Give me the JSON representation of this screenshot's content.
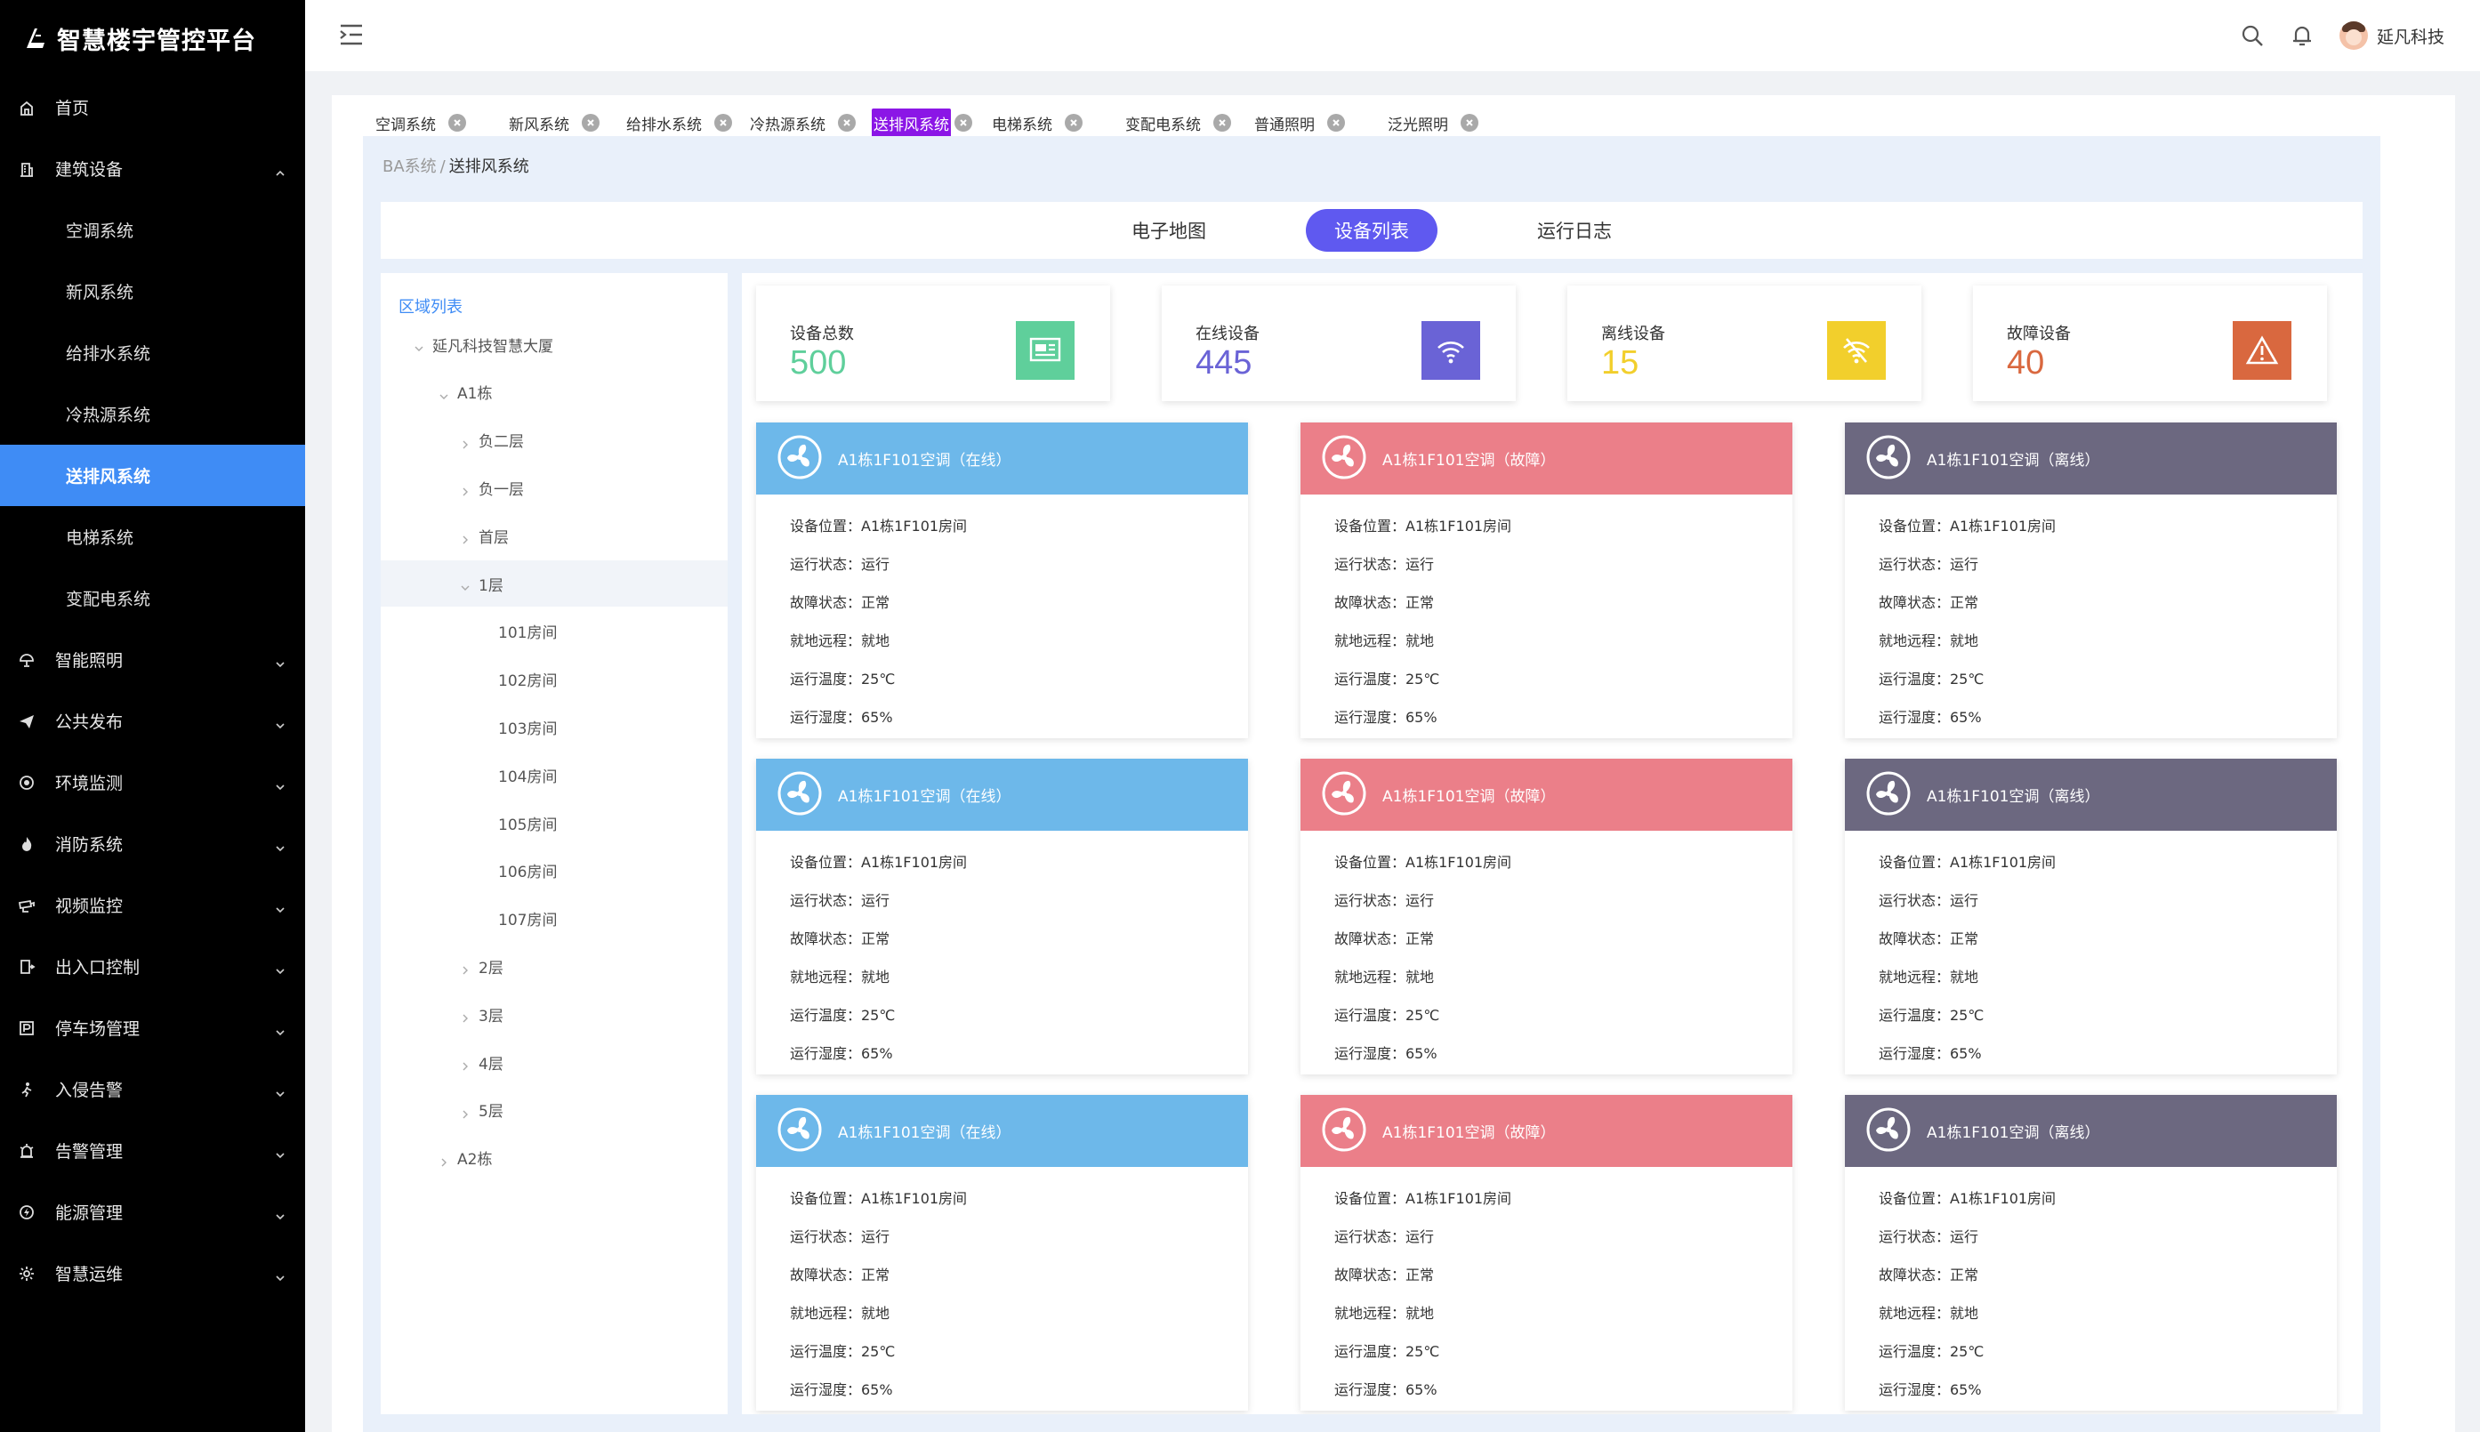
{
  "app": {
    "title": "智慧楼宇管控平台"
  },
  "sidebar": {
    "items": [
      {
        "label": "首页",
        "icon": "home-icon"
      },
      {
        "label": "建筑设备",
        "icon": "building-icon",
        "expanded": true,
        "children": [
          "空调系统",
          "新风系统",
          "给排水系统",
          "冷热源系统",
          "送排风系统",
          "电梯系统",
          "变配电系统"
        ]
      },
      {
        "label": "智能照明",
        "icon": "light-icon"
      },
      {
        "label": "公共发布",
        "icon": "send-icon"
      },
      {
        "label": "环境监测",
        "icon": "environment-icon"
      },
      {
        "label": "消防系统",
        "icon": "fire-icon"
      },
      {
        "label": "视频监控",
        "icon": "camera-icon"
      },
      {
        "label": "出入口控制",
        "icon": "door-icon"
      },
      {
        "label": "停车场管理",
        "icon": "parking-icon"
      },
      {
        "label": "入侵告警",
        "icon": "intrusion-icon"
      },
      {
        "label": "告警管理",
        "icon": "alarm-icon"
      },
      {
        "label": "能源管理",
        "icon": "energy-icon"
      },
      {
        "label": "智慧运维",
        "icon": "maintenance-icon"
      }
    ],
    "active_child": "送排风系统"
  },
  "header": {
    "username": "延凡科技"
  },
  "tabs": [
    "空调系统",
    "新风系统",
    "给排水系统",
    "冷热源系统",
    "送排风系统",
    "电梯系统",
    "变配电系统",
    "普通照明",
    "泛光照明"
  ],
  "active_tab": "送排风系统",
  "breadcrumb": {
    "root": "BA系统",
    "sep": "/",
    "current": "送排风系统"
  },
  "view_tabs": [
    "电子地图",
    "设备列表",
    "运行日志"
  ],
  "active_view": "设备列表",
  "tree": {
    "title": "区域列表",
    "nodes": [
      {
        "label": "延凡科技智慧大厦",
        "level": 0,
        "caret": "down"
      },
      {
        "label": "A1栋",
        "level": 1,
        "caret": "down"
      },
      {
        "label": "负二层",
        "level": 2,
        "caret": "right"
      },
      {
        "label": "负一层",
        "level": 2,
        "caret": "right"
      },
      {
        "label": "首层",
        "level": 2,
        "caret": "right"
      },
      {
        "label": "1层",
        "level": 2,
        "caret": "down",
        "selected": true
      },
      {
        "label": "101房间",
        "level": 3,
        "caret": ""
      },
      {
        "label": "102房间",
        "level": 3,
        "caret": ""
      },
      {
        "label": "103房间",
        "level": 3,
        "caret": ""
      },
      {
        "label": "104房间",
        "level": 3,
        "caret": ""
      },
      {
        "label": "105房间",
        "level": 3,
        "caret": ""
      },
      {
        "label": "106房间",
        "level": 3,
        "caret": ""
      },
      {
        "label": "107房间",
        "level": 3,
        "caret": ""
      },
      {
        "label": "2层",
        "level": 2,
        "caret": "right"
      },
      {
        "label": "3层",
        "level": 2,
        "caret": "right"
      },
      {
        "label": "4层",
        "level": 2,
        "caret": "right"
      },
      {
        "label": "5层",
        "level": 2,
        "caret": "right"
      },
      {
        "label": "A2栋",
        "level": 1,
        "caret": "right"
      }
    ]
  },
  "stats": [
    {
      "label": "设备总数",
      "value": "500",
      "color": "#5fcf9b",
      "icon": "monitor-icon"
    },
    {
      "label": "在线设备",
      "value": "445",
      "color": "#6a63d6",
      "icon": "wifi-icon"
    },
    {
      "label": "离线设备",
      "value": "15",
      "color": "#f2cf2c",
      "icon": "wifi-off-icon"
    },
    {
      "label": "故障设备",
      "value": "40",
      "color": "#d9683f",
      "icon": "warning-icon"
    }
  ],
  "device_cards": [
    {
      "title": "A1栋1F101空调（在线）",
      "status": "online"
    },
    {
      "title": "A1栋1F101空调（故障）",
      "status": "fault"
    },
    {
      "title": "A1栋1F101空调（离线）",
      "status": "offline"
    },
    {
      "title": "A1栋1F101空调（在线）",
      "status": "online"
    },
    {
      "title": "A1栋1F101空调（故障）",
      "status": "fault"
    },
    {
      "title": "A1栋1F101空调（离线）",
      "status": "offline"
    },
    {
      "title": "A1栋1F101空调（在线）",
      "status": "online"
    },
    {
      "title": "A1栋1F101空调（故障）",
      "status": "fault"
    },
    {
      "title": "A1栋1F101空调（离线）",
      "status": "offline"
    }
  ],
  "device_rows": [
    "设备位置：A1栋1F101房间",
    "运行状态：运行",
    "故障状态：正常",
    "就地远程：就地",
    "运行温度：25℃",
    "运行湿度：65%"
  ]
}
